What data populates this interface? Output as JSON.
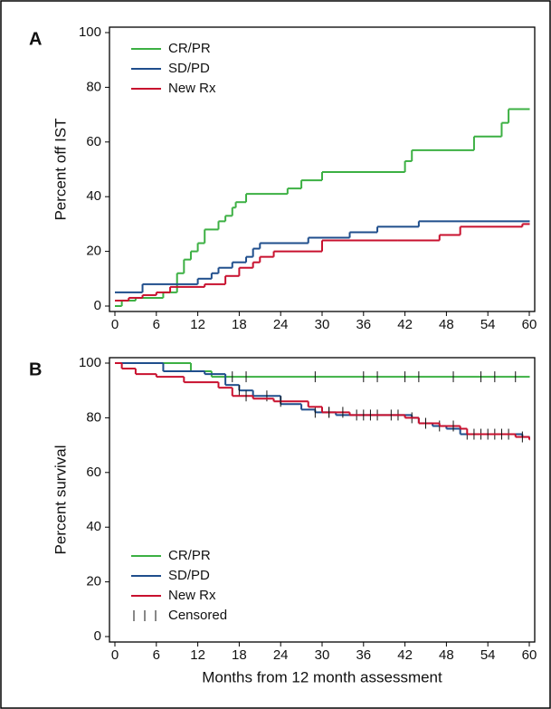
{
  "chart_data": [
    {
      "type": "step",
      "panel_label": "A",
      "ylabel": "Percent off IST",
      "xlim": [
        0,
        60
      ],
      "xticks": [
        0,
        6,
        12,
        18,
        24,
        30,
        36,
        42,
        48,
        54,
        60
      ],
      "ylim": [
        0,
        100
      ],
      "yticks": [
        0,
        20,
        40,
        60,
        80,
        100
      ],
      "legend": "upper-left",
      "series": [
        {
          "name": "CR/PR",
          "color": "#3cb043",
          "x": [
            0,
            1,
            3,
            7,
            9,
            10,
            11,
            12,
            13,
            15,
            16,
            17,
            17.5,
            19,
            25,
            27,
            30,
            42,
            43,
            52,
            56,
            57,
            60
          ],
          "values": [
            0,
            2,
            3,
            5,
            12,
            17,
            20,
            23,
            28,
            31,
            33,
            36,
            38,
            41,
            43,
            46,
            49,
            53,
            57,
            62,
            67,
            72,
            72
          ]
        },
        {
          "name": "SD/PD",
          "color": "#1f4e8c",
          "x": [
            0,
            4,
            12,
            14,
            15,
            17,
            19,
            20,
            21,
            28,
            34,
            38,
            44,
            60
          ],
          "values": [
            5,
            8,
            10,
            12,
            14,
            16,
            18,
            21,
            23,
            25,
            27,
            29,
            31,
            31
          ]
        },
        {
          "name": "New Rx",
          "color": "#c8102e",
          "x": [
            0,
            2,
            4,
            6,
            8,
            13,
            16,
            18,
            20,
            21,
            23,
            30,
            41,
            47,
            50,
            59,
            60
          ],
          "values": [
            2,
            3,
            4,
            5,
            7,
            8,
            11,
            14,
            16,
            18,
            20,
            24,
            24,
            26,
            29,
            30,
            30
          ]
        }
      ]
    },
    {
      "type": "step",
      "panel_label": "B",
      "ylabel": "Percent survival",
      "xlabel": "Months from 12 month assessment",
      "xlim": [
        0,
        60
      ],
      "xticks": [
        0,
        6,
        12,
        18,
        24,
        30,
        36,
        42,
        48,
        54,
        60
      ],
      "ylim": [
        0,
        100
      ],
      "yticks": [
        0,
        20,
        40,
        60,
        80,
        100
      ],
      "legend": "lower-left",
      "censored_label": "Censored",
      "series": [
        {
          "name": "CR/PR",
          "color": "#3cb043",
          "x": [
            0,
            11,
            14,
            60
          ],
          "values": [
            100,
            97,
            95,
            95
          ],
          "censored": [
            17,
            19,
            29,
            36,
            38,
            42,
            44,
            49,
            53,
            55,
            58
          ]
        },
        {
          "name": "SD/PD",
          "color": "#1f4e8c",
          "x": [
            0,
            7,
            13,
            16,
            18,
            20,
            24,
            27,
            29,
            32,
            43,
            44,
            46,
            48,
            50,
            59,
            60
          ],
          "values": [
            100,
            97,
            96,
            92,
            90,
            88,
            85,
            83,
            82,
            81,
            80,
            78,
            77,
            76,
            74,
            73,
            73
          ],
          "censored": [
            18,
            22,
            29,
            31,
            35,
            38,
            41,
            43,
            47,
            51,
            53,
            55,
            57
          ]
        },
        {
          "name": "New Rx",
          "color": "#c8102e",
          "x": [
            0,
            1,
            3,
            6,
            10,
            15,
            17,
            20,
            23,
            28,
            30,
            34,
            42,
            44,
            47,
            50,
            51,
            58,
            60
          ],
          "values": [
            100,
            98,
            96,
            95,
            93,
            91,
            88,
            87,
            86,
            84,
            82,
            81,
            80,
            78,
            77,
            76,
            74,
            73,
            72
          ],
          "censored": [
            19,
            24,
            31,
            33,
            36,
            37,
            40,
            45,
            49,
            52,
            54,
            56,
            59
          ]
        }
      ]
    }
  ]
}
